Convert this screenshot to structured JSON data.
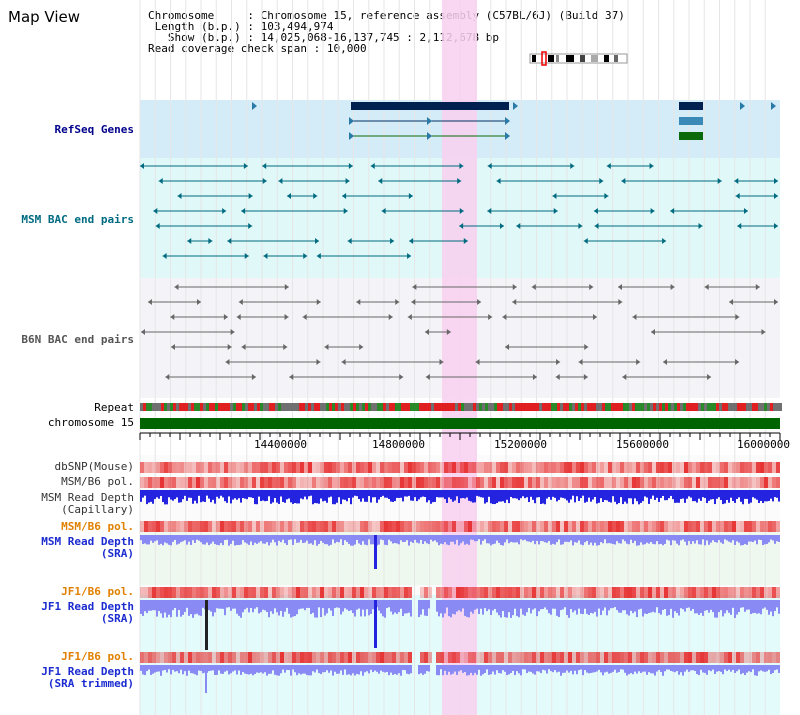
{
  "title": "Map View",
  "info": {
    "chromosome_label": "Chromosome",
    "chromosome_value": "Chromosome 15, reference assembly (C57BL/6J) (Build 37)",
    "length_label": "Length (b.p.)",
    "length_value": "103,494,974",
    "show_label": "Show (b.p.)",
    "show_value": "14,025,068-16,137,745 : 2,112,678 bp",
    "coverage_label": "Read coverage check span",
    "coverage_value": "10,000"
  },
  "tracks": {
    "refseq": "RefSeq Genes",
    "msm_bac": "MSM BAC end pairs",
    "b6n_bac": "B6N BAC end pairs",
    "repeat": "Repeat",
    "chromosome": "chromosome 15",
    "dbsnp": "dbSNP(Mouse)",
    "msm_b6_pol_1": "MSM/B6 pol.",
    "msm_depth_cap_1": "MSM Read Depth",
    "msm_depth_cap_2": "(Capillary)",
    "msm_b6_pol_2": "MSM/B6 pol.",
    "msm_depth_sra_1": "MSM Read Depth",
    "msm_depth_sra_2": "(SRA)",
    "jf1_b6_pol_1": "JF1/B6 pol.",
    "jf1_depth_1": "JF1 Read Depth",
    "jf1_depth_2": "(SRA)",
    "jf1_b6_pol_2": "JF1/B6 pol.",
    "jf1_trim_1": "JF1 Read Depth",
    "jf1_trim_2": "(SRA trimmed)"
  },
  "axis": {
    "ticks": [
      "14400000",
      "14800000",
      "15200000",
      "15600000",
      "16000000"
    ]
  },
  "colors": {
    "refseq_bg": "#d4ecf8",
    "msm_bg": "#e0f8f8",
    "b6n_bg": "#f4f4f8",
    "highlight": "#f8d0f0",
    "chromosome_bar": "#006400",
    "depth_blue": "#2323e0",
    "depth_light": "#8a8af4",
    "teal_feature": "#006b80",
    "gene_dark": "#002050"
  }
}
